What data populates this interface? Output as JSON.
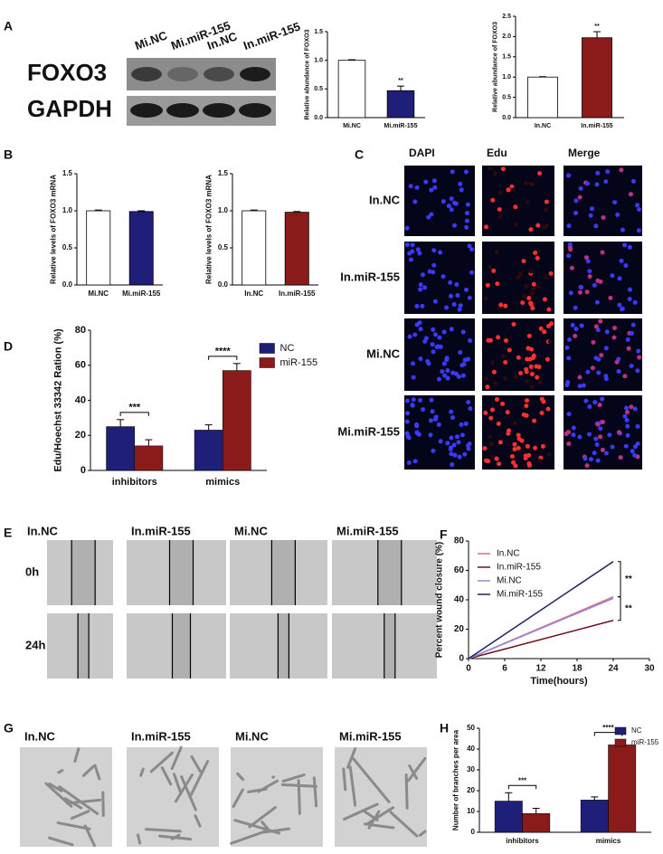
{
  "panel_labels": [
    "A",
    "B",
    "C",
    "D",
    "E",
    "F",
    "G",
    "H"
  ],
  "blot": {
    "lanes": [
      "Mi.NC",
      "Mi.miR-155",
      "In.NC",
      "In.miR-155"
    ],
    "rows": [
      "FOXO3",
      "GAPDH"
    ]
  },
  "panel_c": {
    "columns": [
      "DAPI",
      "Edu",
      "Merge"
    ],
    "rows": [
      "In.NC",
      "In.miR-155",
      "Mi.NC",
      "Mi.miR-155"
    ]
  },
  "panel_e": {
    "columns": [
      "In.NC",
      "In.miR-155",
      "Mi.NC",
      "Mi.miR-155"
    ],
    "rows": [
      "0h",
      "24h"
    ]
  },
  "panel_g": {
    "columns": [
      "In.NC",
      "In.miR-155",
      "Mi.NC",
      "Mi.miR-155"
    ]
  },
  "chart_data": [
    {
      "type": "bar",
      "y_label": "Relative abundance of FOXO3",
      "categories": [
        "Mi.NC",
        "Mi.miR-155"
      ],
      "values": [
        1.0,
        0.47
      ],
      "errors": [
        0.01,
        0.08
      ],
      "colors": [
        "#ffffff",
        "#1f1f7a"
      ],
      "ylim": [
        0,
        1.5
      ],
      "yticks": [
        {
          "value": 0,
          "label": "0.0"
        },
        0.5,
        {
          "value": 1,
          "label": "1.0"
        },
        1.5
      ],
      "annotations": [
        "**"
      ]
    },
    {
      "type": "bar",
      "y_label": "Relative abundance of FOXO3",
      "categories": [
        "In.NC",
        "In.miR-155"
      ],
      "values": [
        1.0,
        1.97
      ],
      "errors": [
        0.01,
        0.15
      ],
      "colors": [
        "#ffffff",
        "#8b1a1a"
      ],
      "ylim": [
        0,
        2.5
      ],
      "yticks": [
        {
          "value": 0,
          "label": "0.0"
        },
        0.5,
        {
          "value": 1,
          "label": "1.0"
        },
        1.5,
        {
          "value": 2,
          "label": "2.0"
        },
        2.5
      ],
      "annotations": [
        "**"
      ]
    },
    {
      "type": "bar",
      "y_label": "Relative levels of FOXO3 mRNA",
      "categories": [
        "Mi.NC",
        "Mi.miR-155"
      ],
      "values": [
        1.0,
        0.99
      ],
      "errors": [
        0.01,
        0.01
      ],
      "colors": [
        "#ffffff",
        "#1f1f7a"
      ],
      "ylim": [
        0,
        1.5
      ],
      "yticks": [
        {
          "value": 0,
          "label": "0.0"
        },
        0.5,
        {
          "value": 1,
          "label": "1.0"
        },
        1.5
      ]
    },
    {
      "type": "bar",
      "y_label": "Relative levels of FOXO3 mRNA",
      "categories": [
        "In.NC",
        "In.miR-155"
      ],
      "values": [
        1.0,
        0.98
      ],
      "errors": [
        0.01,
        0.01
      ],
      "colors": [
        "#ffffff",
        "#8b1a1a"
      ],
      "ylim": [
        0,
        1.5
      ],
      "yticks": [
        {
          "value": 0,
          "label": "0.0"
        },
        0.5,
        {
          "value": 1,
          "label": "1.0"
        },
        1.5
      ]
    },
    {
      "type": "bar",
      "y_label": "Edu/Hoechst 33342 Ration (%)",
      "categories": [
        "inhibitors",
        "mimics"
      ],
      "series": [
        {
          "name": "NC",
          "color": "#1f1f7a",
          "values": [
            25,
            23
          ],
          "errors": [
            4,
            3
          ]
        },
        {
          "name": "miR-155",
          "color": "#8b1a1a",
          "values": [
            14,
            57
          ],
          "errors": [
            3.5,
            4
          ]
        }
      ],
      "ylim": [
        0,
        80
      ],
      "yticks": [
        0,
        20,
        40,
        60,
        80
      ],
      "annotations": [
        "***",
        "****"
      ]
    },
    {
      "type": "line",
      "x_label": "Time(hours)",
      "y_label": "Percent wound closure (%)",
      "x": [
        0,
        24
      ],
      "series": [
        {
          "name": "In.NC",
          "color": "#e06c7c",
          "values": [
            0,
            42
          ]
        },
        {
          "name": "In.miR-155",
          "color": "#6b0f1a",
          "values": [
            0,
            26
          ]
        },
        {
          "name": "Mi.NC",
          "color": "#9a86d8",
          "values": [
            0,
            41
          ]
        },
        {
          "name": "Mi.miR-155",
          "color": "#1f1f5a",
          "values": [
            0,
            66
          ]
        }
      ],
      "xlim": [
        0,
        30
      ],
      "xticks": [
        0,
        6,
        12,
        18,
        24,
        30
      ],
      "ylim": [
        0,
        80
      ],
      "yticks": [
        0,
        20,
        40,
        60,
        80
      ],
      "annotations": [
        "**",
        "**"
      ]
    },
    {
      "type": "bar",
      "y_label": "Number of branches per area",
      "categories": [
        "inhibitors",
        "mimics"
      ],
      "series": [
        {
          "name": "NC",
          "color": "#1f1f7a",
          "values": [
            15,
            15.5
          ],
          "errors": [
            4,
            1.5
          ]
        },
        {
          "name": "miR-155",
          "color": "#8b1a1a",
          "values": [
            9,
            42
          ],
          "errors": [
            2.5,
            2.5
          ]
        }
      ],
      "ylim": [
        0,
        50
      ],
      "yticks": [
        0,
        10,
        20,
        30,
        40,
        50
      ],
      "annotations": [
        "***",
        "****"
      ]
    }
  ]
}
